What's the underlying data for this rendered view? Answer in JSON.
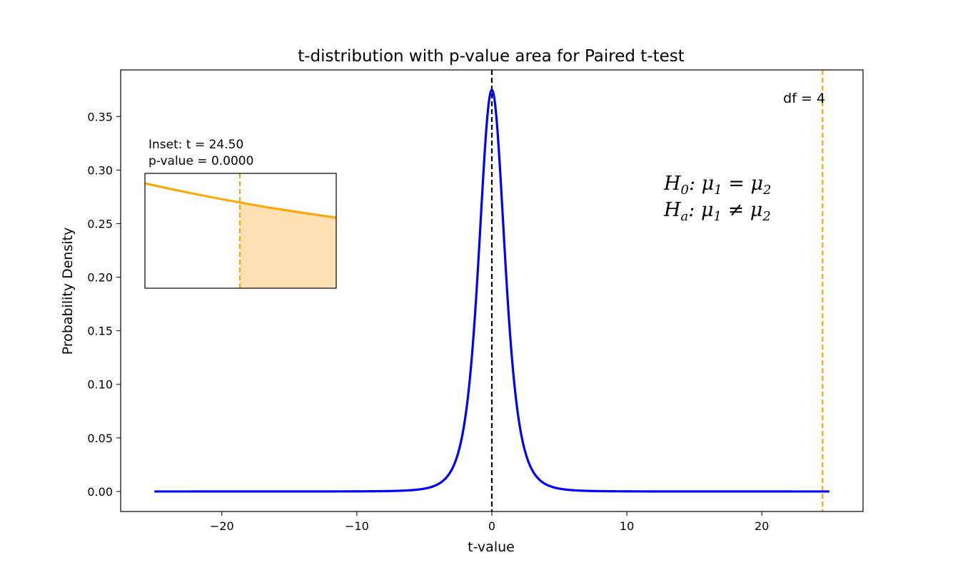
{
  "chart_data": {
    "type": "line",
    "title": "t-distribution with p-value area for Paired t-test",
    "xlabel": "t-value",
    "ylabel": "Probability Density",
    "xlim": [
      -27.5,
      27.5
    ],
    "ylim": [
      -0.0187,
      0.3935
    ],
    "x_ticks": [
      -20,
      -10,
      0,
      10,
      20
    ],
    "x_tick_labels": [
      "−20",
      "−10",
      "0",
      "10",
      "20"
    ],
    "y_ticks": [
      0.0,
      0.05,
      0.1,
      0.15,
      0.2,
      0.25,
      0.3,
      0.35
    ],
    "y_tick_labels": [
      "0.00",
      "0.05",
      "0.10",
      "0.15",
      "0.20",
      "0.25",
      "0.30",
      "0.35"
    ],
    "grid": false,
    "df": 4,
    "t_stat": 24.5,
    "series": [
      {
        "distribution": "student-t",
        "df": 4,
        "x_range": [
          -25,
          25
        ],
        "color": "#0000ff"
      }
    ],
    "vlines": [
      {
        "x": 0,
        "color": "#000000",
        "style": "dashed"
      },
      {
        "x": 24.5,
        "color": "#ffa500",
        "style": "dashed"
      }
    ],
    "annotations": {
      "df_label": "df = 4",
      "hypothesis": {
        "h0": {
          "sym": "H",
          "sub": "0",
          "rhs": ": μ",
          "rsub": "1",
          "op": " = μ",
          "osub": "2"
        },
        "ha": {
          "sym": "H",
          "sub": "a",
          "rhs": ": μ",
          "rsub": "1",
          "op": " ≠ μ",
          "osub": "2"
        }
      }
    },
    "inset": {
      "line1": "Inset: t = 24.50",
      "line2": "p-value = 0.0000",
      "curve_color": "#ffa500",
      "fill_color": "#ffe0b2",
      "vline_color": "#ffa500"
    }
  }
}
